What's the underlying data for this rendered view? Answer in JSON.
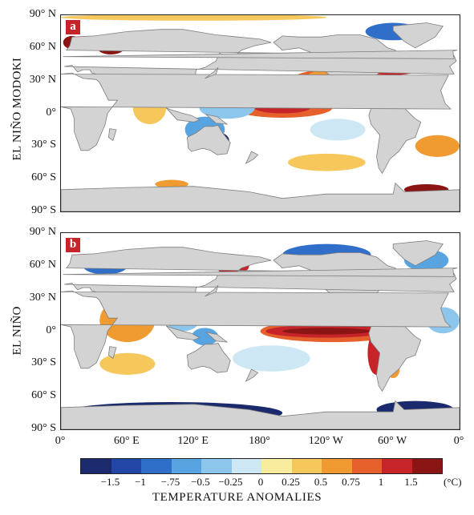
{
  "panels": [
    {
      "tag": "a",
      "row_label": "EL NIÑO MODOKI",
      "anomalies": [
        {
          "lon": 260,
          "lat": 28,
          "rx": 55,
          "ry": 14,
          "value": 0.75
        },
        {
          "lon": 300,
          "lat": 44,
          "rx": 28,
          "ry": 9,
          "value": 1.0
        },
        {
          "lon": 200,
          "lat": 5,
          "rx": 45,
          "ry": 9,
          "value": 0.75
        },
        {
          "lon": 200,
          "lat": 5,
          "rx": 25,
          "ry": 5,
          "value": 1.0
        },
        {
          "lon": 240,
          "lat": 30,
          "rx": 20,
          "ry": 10,
          "value": 0.5
        },
        {
          "lon": 140,
          "lat": -25,
          "rx": 12,
          "ry": 8,
          "value": -1.5
        },
        {
          "lon": 130,
          "lat": -15,
          "rx": 18,
          "ry": 12,
          "value": -0.75
        },
        {
          "lon": 150,
          "lat": 5,
          "rx": 25,
          "ry": 10,
          "value": -0.5
        },
        {
          "lon": 45,
          "lat": 60,
          "rx": 12,
          "ry": 6,
          "value": 1.5
        },
        {
          "lon": 10,
          "lat": 65,
          "rx": 8,
          "ry": 6,
          "value": 1.5
        },
        {
          "lon": 100,
          "lat": -65,
          "rx": 15,
          "ry": 4,
          "value": 0.5
        },
        {
          "lon": 330,
          "lat": -70,
          "rx": 20,
          "ry": 5,
          "value": 1.5
        },
        {
          "lon": 180,
          "lat": -85,
          "rx": 40,
          "ry": 3,
          "value": -1.5
        },
        {
          "lon": 30,
          "lat": -86,
          "rx": 30,
          "ry": 3,
          "value": 1.5
        },
        {
          "lon": 240,
          "lat": -45,
          "rx": 35,
          "ry": 8,
          "value": 0.25
        },
        {
          "lon": 340,
          "lat": -30,
          "rx": 20,
          "ry": 10,
          "value": 0.5
        },
        {
          "lon": 120,
          "lat": 88,
          "rx": 120,
          "ry": 3,
          "value": 0.25
        },
        {
          "lon": 80,
          "lat": 5,
          "rx": 15,
          "ry": 15,
          "value": 0.25
        },
        {
          "lon": 300,
          "lat": 75,
          "rx": 25,
          "ry": 8,
          "value": -1.0
        },
        {
          "lon": 250,
          "lat": -15,
          "rx": 25,
          "ry": 10,
          "value": -0.25
        }
      ]
    },
    {
      "tag": "b",
      "row_label": "EL NIÑO",
      "anomalies": [
        {
          "lon": 245,
          "lat": 0,
          "rx": 65,
          "ry": 10,
          "value": 0.75
        },
        {
          "lon": 240,
          "lat": 0,
          "rx": 55,
          "ry": 6,
          "value": 1.0
        },
        {
          "lon": 240,
          "lat": 0,
          "rx": 40,
          "ry": 3,
          "value": 1.5
        },
        {
          "lon": 285,
          "lat": -20,
          "rx": 8,
          "ry": 20,
          "value": 1.0
        },
        {
          "lon": 300,
          "lat": -35,
          "rx": 6,
          "ry": 8,
          "value": 0.5
        },
        {
          "lon": 180,
          "lat": 25,
          "rx": 45,
          "ry": 10,
          "value": -0.5
        },
        {
          "lon": 190,
          "lat": -25,
          "rx": 35,
          "ry": 12,
          "value": -0.25
        },
        {
          "lon": 60,
          "lat": 10,
          "rx": 25,
          "ry": 20,
          "value": 0.5
        },
        {
          "lon": 110,
          "lat": 10,
          "rx": 15,
          "ry": 10,
          "value": -0.5
        },
        {
          "lon": 60,
          "lat": -30,
          "rx": 25,
          "ry": 10,
          "value": 0.25
        },
        {
          "lon": 130,
          "lat": -5,
          "rx": 12,
          "ry": 8,
          "value": -0.75
        },
        {
          "lon": 40,
          "lat": 60,
          "rx": 20,
          "ry": 8,
          "value": -1.0
        },
        {
          "lon": 240,
          "lat": 70,
          "rx": 40,
          "ry": 10,
          "value": -1.0
        },
        {
          "lon": 330,
          "lat": 65,
          "rx": 20,
          "ry": 10,
          "value": -0.75
        },
        {
          "lon": 100,
          "lat": -75,
          "rx": 100,
          "ry": 10,
          "value": -1.5
        },
        {
          "lon": 320,
          "lat": -72,
          "rx": 35,
          "ry": 8,
          "value": -1.5
        },
        {
          "lon": 345,
          "lat": 10,
          "rx": 15,
          "ry": 12,
          "value": -0.5
        },
        {
          "lon": 155,
          "lat": 60,
          "rx": 15,
          "ry": 8,
          "value": 1.0
        }
      ]
    }
  ],
  "lat_labels": [
    "90° N",
    "60° N",
    "30° N",
    "0°",
    "30° S",
    "60° S",
    "90° S"
  ],
  "lon_labels": [
    "0°",
    "60° E",
    "120° E",
    "180°",
    "120° W",
    "60° W",
    "0°"
  ],
  "colorbar": {
    "title": "TEMPERATURE ANOMALIES",
    "unit": "(°C)",
    "ticks": [
      "−1.5",
      "−1",
      "−.75",
      "−0.5",
      "−0.25",
      "0",
      "0.25",
      "0.5",
      "0.75",
      "1",
      "1.5"
    ],
    "colors": [
      "#1a2a6c",
      "#2146a6",
      "#2f6fc9",
      "#58a4e0",
      "#8cc6ec",
      "#cde7f5",
      "#f8ec9e",
      "#f6c75a",
      "#f09b32",
      "#e5602a",
      "#c7242a",
      "#8a1514"
    ]
  },
  "land_color": "#d3d3d3",
  "coast_color": "#7d7d7d",
  "tag_color": "#c7242a"
}
